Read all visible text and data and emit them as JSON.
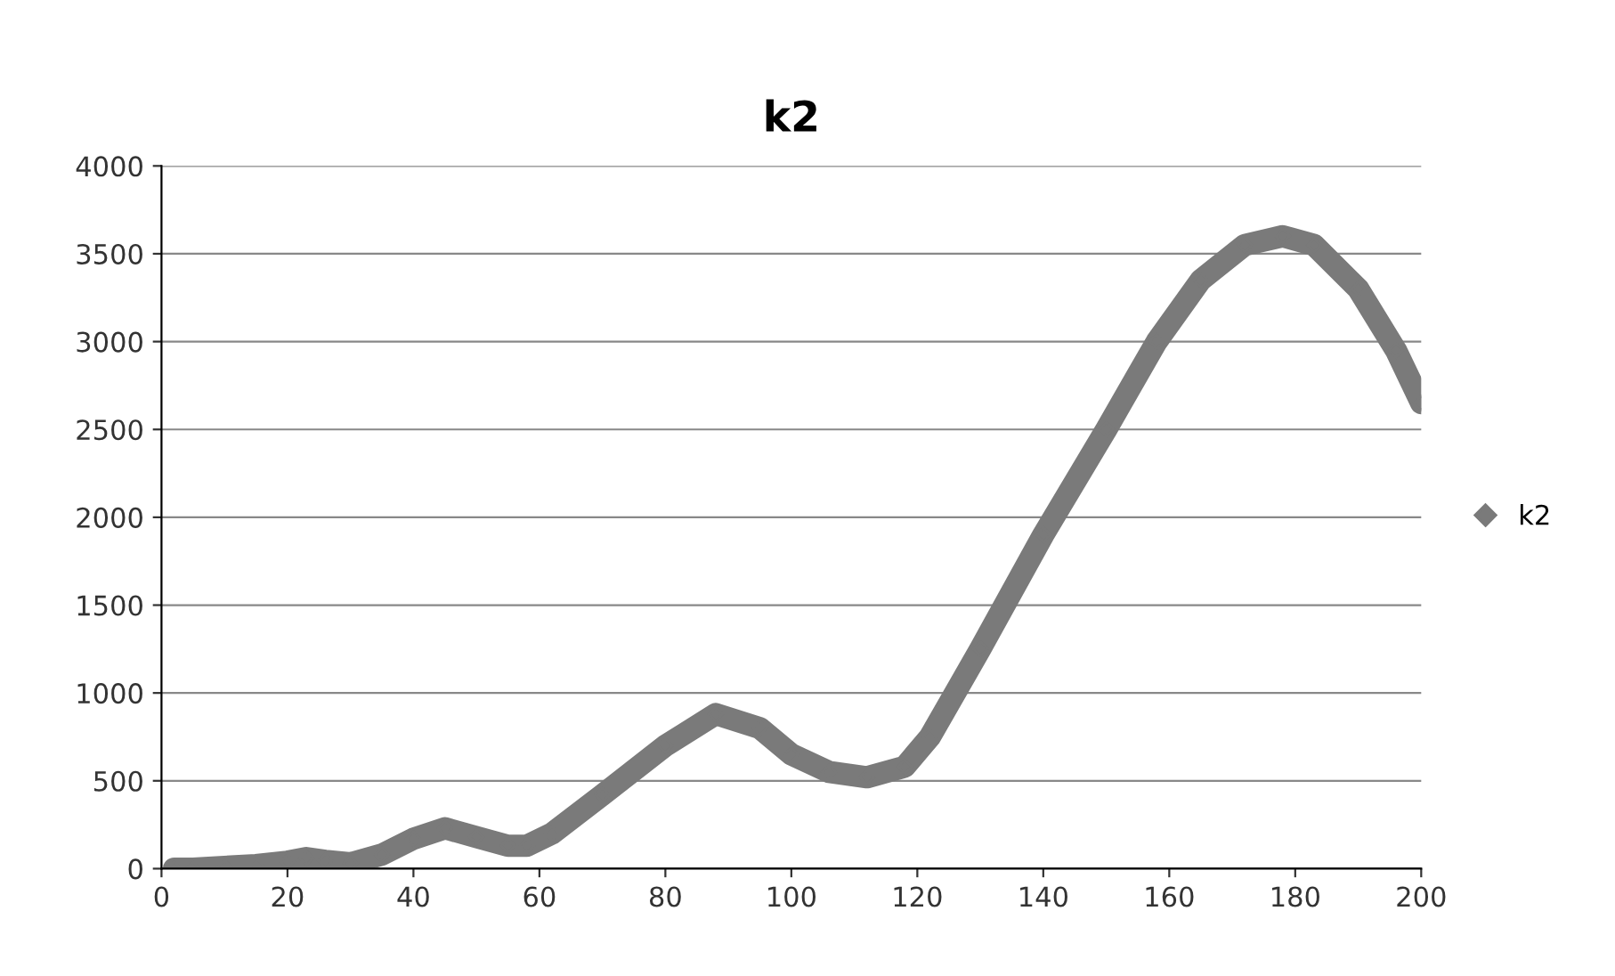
{
  "chart_data": {
    "type": "line",
    "title": "k2",
    "x": [
      2,
      5,
      10,
      15,
      20,
      23,
      26,
      30,
      35,
      40,
      45,
      50,
      55,
      58,
      62,
      70,
      80,
      88,
      95,
      100,
      106,
      112,
      118,
      122,
      130,
      140,
      150,
      158,
      165,
      172,
      178,
      183,
      190,
      196,
      200
    ],
    "series": [
      {
        "name": "k2",
        "color": "#7a7a7a",
        "values": [
          0,
          0,
          10,
          20,
          40,
          60,
          45,
          30,
          80,
          170,
          230,
          180,
          130,
          130,
          200,
          420,
          700,
          880,
          800,
          650,
          550,
          520,
          580,
          750,
          1250,
          1900,
          2500,
          3000,
          3350,
          3550,
          3600,
          3550,
          3300,
          2950,
          2650
        ]
      }
    ],
    "xlim": [
      0,
      200
    ],
    "xticks": [
      0,
      20,
      40,
      60,
      80,
      100,
      120,
      140,
      160,
      180,
      200
    ],
    "ylim": [
      0,
      4000
    ],
    "yticks": [
      0,
      500,
      1000,
      1500,
      2000,
      2500,
      3000,
      3500,
      4000
    ],
    "grid": "y",
    "legend": "right",
    "marker": "diamond",
    "line_style": "solid"
  }
}
